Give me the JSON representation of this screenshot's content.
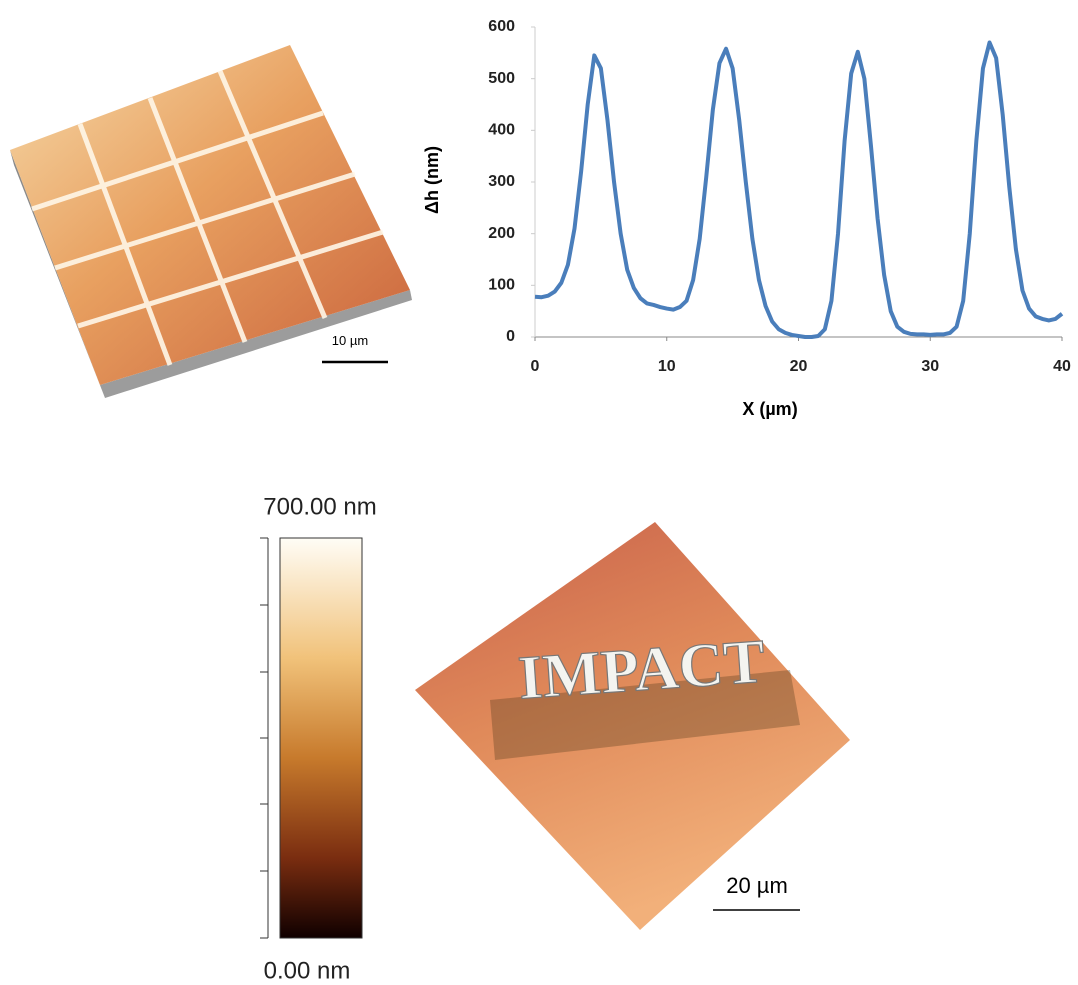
{
  "chart_data": {
    "type": "line",
    "x_label": "X (µm)",
    "y_label": "Δh (nm)",
    "x": [
      0,
      0.5,
      1,
      1.5,
      2,
      2.5,
      3,
      3.5,
      4,
      4.5,
      5,
      5.5,
      6,
      6.5,
      7,
      7.5,
      8,
      8.5,
      9,
      9.5,
      10,
      10.5,
      11,
      11.5,
      12,
      12.5,
      13,
      13.5,
      14,
      14.5,
      15,
      15.5,
      16,
      16.5,
      17,
      17.5,
      18,
      18.5,
      19,
      19.5,
      20,
      20.5,
      21,
      21.5,
      22,
      22.5,
      23,
      23.5,
      24,
      24.5,
      25,
      25.5,
      26,
      26.5,
      27,
      27.5,
      28,
      28.5,
      29,
      29.5,
      30,
      30.5,
      31,
      31.5,
      32,
      32.5,
      33,
      33.5,
      34,
      34.5,
      35,
      35.5,
      36,
      36.5,
      37,
      37.5,
      38,
      38.5,
      39,
      39.5,
      40
    ],
    "values": [
      78,
      77,
      80,
      88,
      105,
      140,
      210,
      320,
      450,
      545,
      520,
      420,
      300,
      200,
      130,
      95,
      75,
      65,
      62,
      58,
      55,
      53,
      58,
      70,
      110,
      190,
      310,
      440,
      530,
      558,
      520,
      420,
      300,
      190,
      110,
      60,
      30,
      15,
      8,
      4,
      2,
      0,
      0,
      2,
      15,
      70,
      200,
      380,
      510,
      552,
      500,
      370,
      230,
      120,
      50,
      20,
      10,
      6,
      5,
      5,
      4,
      5,
      5,
      8,
      20,
      70,
      200,
      380,
      520,
      570,
      540,
      430,
      290,
      170,
      90,
      55,
      40,
      35,
      32,
      35,
      45
    ],
    "color": "#4a7ebb",
    "xlim": [
      0,
      40
    ],
    "xticks": [
      0,
      10,
      20,
      30,
      40
    ],
    "ylim": [
      0,
      600
    ],
    "yticks": [
      0,
      100,
      200,
      300,
      400,
      500,
      600
    ],
    "grid": false
  },
  "images": [
    {
      "scale_bar": "10 µm"
    },
    {
      "scale_bar": "20 µm",
      "text": "IMPACT"
    }
  ],
  "colorbar": {
    "ends": [
      {
        "value": 0,
        "label": "0.00 nm"
      },
      {
        "value": 700,
        "label": "700.00 nm"
      }
    ]
  }
}
